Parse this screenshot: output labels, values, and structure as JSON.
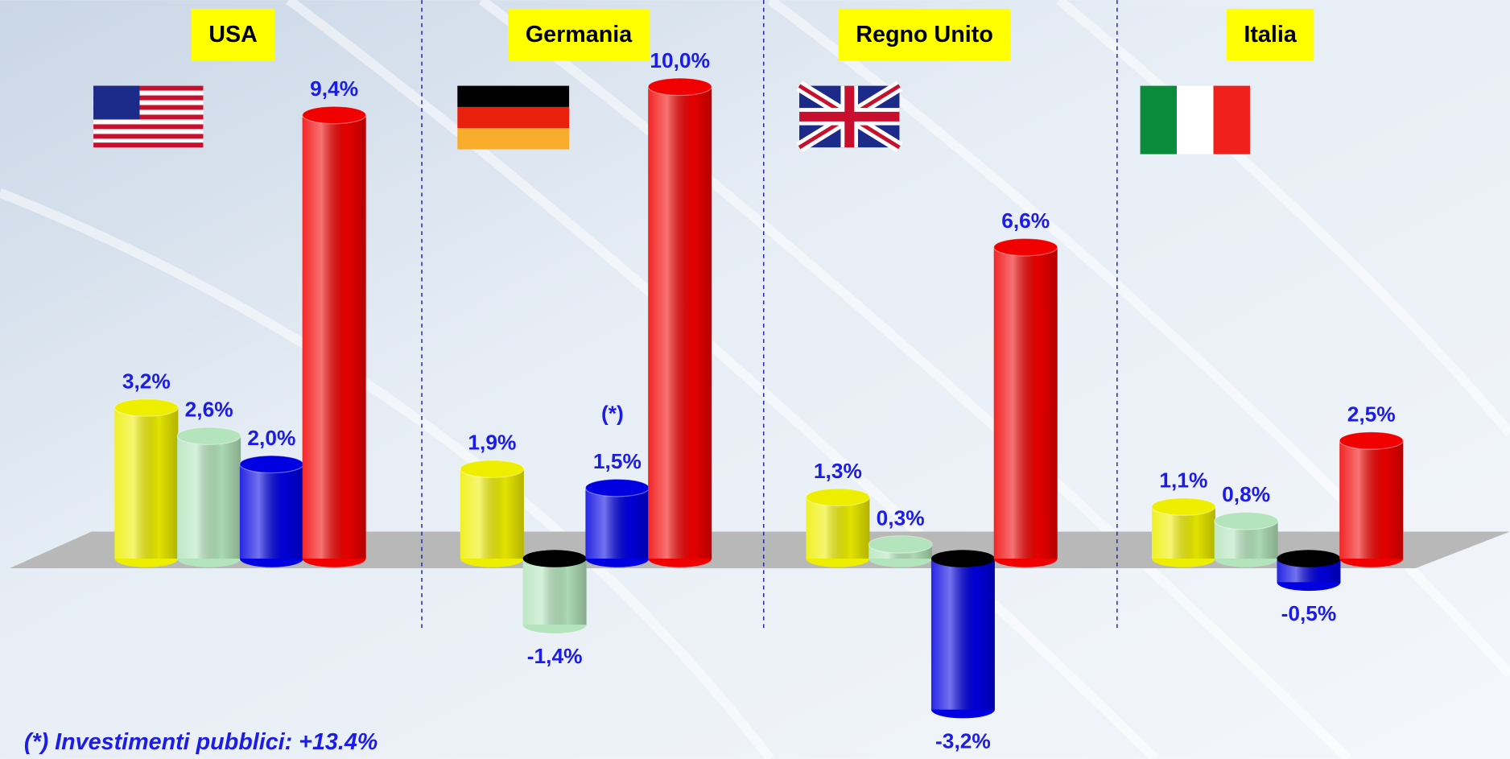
{
  "chart_data": {
    "type": "bar",
    "categories": [
      "USA",
      "Germania",
      "Regno Unito",
      "Italia"
    ],
    "series": [
      {
        "color": "#eeee00",
        "values": [
          3.2,
          1.9,
          1.3,
          1.1
        ],
        "value_labels": [
          "3,2%",
          "1,9%",
          "1,3%",
          "1,1%"
        ]
      },
      {
        "color": "#b4e4bc",
        "values": [
          2.6,
          -1.4,
          0.3,
          0.8
        ],
        "value_labels": [
          "2,6%",
          "-1,4%",
          "0,3%",
          "0,8%"
        ]
      },
      {
        "color": "#0000e0",
        "values": [
          2.0,
          1.5,
          -3.2,
          -0.5
        ],
        "value_labels": [
          "2,0%",
          "1,5%",
          "-3,2%",
          "-0,5%"
        ]
      },
      {
        "color": "#f00000",
        "values": [
          9.4,
          10.0,
          6.6,
          2.5
        ],
        "value_labels": [
          "9,4%",
          "10,0%",
          "6,6%",
          "2,5%"
        ]
      }
    ],
    "annotation": "(*)",
    "footnote": "(*) Investimenti pubblici: +13.4%"
  }
}
